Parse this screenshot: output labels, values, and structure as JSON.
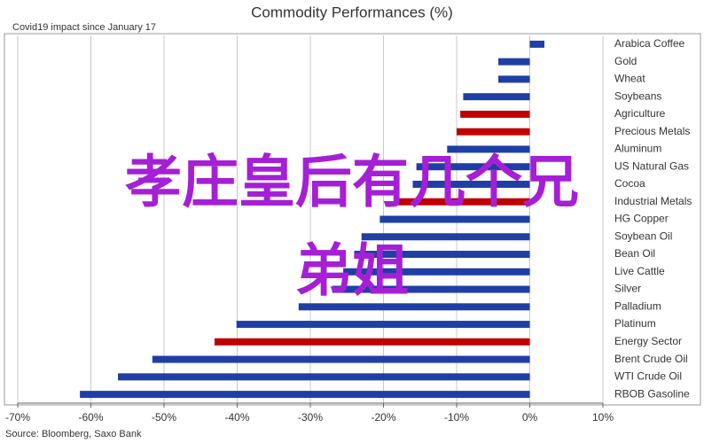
{
  "chart_data": {
    "type": "hbar",
    "title": "Commodity Performances (%)",
    "subtitle": "Covid19 impact since January 17",
    "source": "Source: Bloomberg, Saxo Bank",
    "categories": [
      "Arabica Coffee",
      "Gold",
      "Wheat",
      "Soybeans",
      "Agriculture",
      "Precious Metals",
      "Aluminum",
      "US Natural Gas",
      "Cocoa",
      "Industrial Metals",
      "HG Copper",
      "Soybean Oil",
      "Bean Oil",
      "Live Cattle",
      "Silver",
      "Palladium",
      "Platinum",
      "Energy Sector",
      "Brent Crude Oil",
      "WTI Crude Oil",
      "RBOB Gasoline"
    ],
    "values": [
      2.0,
      -4.3,
      -4.3,
      -9.1,
      -9.5,
      -10.0,
      -11.3,
      -15.5,
      -16.0,
      -18.6,
      -20.5,
      -23.0,
      -24.0,
      -25.5,
      -27.0,
      -31.6,
      -40.1,
      -43.1,
      -51.6,
      -56.3,
      -61.5
    ],
    "colors": [
      "#1f3fa6",
      "#1f3fa6",
      "#1f3fa6",
      "#1f3fa6",
      "#c00000",
      "#c00000",
      "#1f3fa6",
      "#1f3fa6",
      "#1f3fa6",
      "#c00000",
      "#1f3fa6",
      "#1f3fa6",
      "#1f3fa6",
      "#1f3fa6",
      "#1f3fa6",
      "#1f3fa6",
      "#1f3fa6",
      "#c00000",
      "#1f3fa6",
      "#1f3fa6",
      "#1f3fa6"
    ],
    "xlim": [
      -70,
      10
    ],
    "xticks": [
      {
        "value": -70,
        "label": "-70%"
      },
      {
        "value": -60,
        "label": "-60%"
      },
      {
        "value": -50,
        "label": "-50%"
      },
      {
        "value": -40,
        "label": "-40%"
      },
      {
        "value": -30,
        "label": "-30%"
      },
      {
        "value": -20,
        "label": "-20%"
      },
      {
        "value": -10,
        "label": "-10%"
      },
      {
        "value": 0,
        "label": "0%"
      },
      {
        "value": 10,
        "label": "10%"
      }
    ],
    "grid": true
  },
  "overlay_text": [
    "孝庄皇后有几个兄",
    "弟姐"
  ]
}
